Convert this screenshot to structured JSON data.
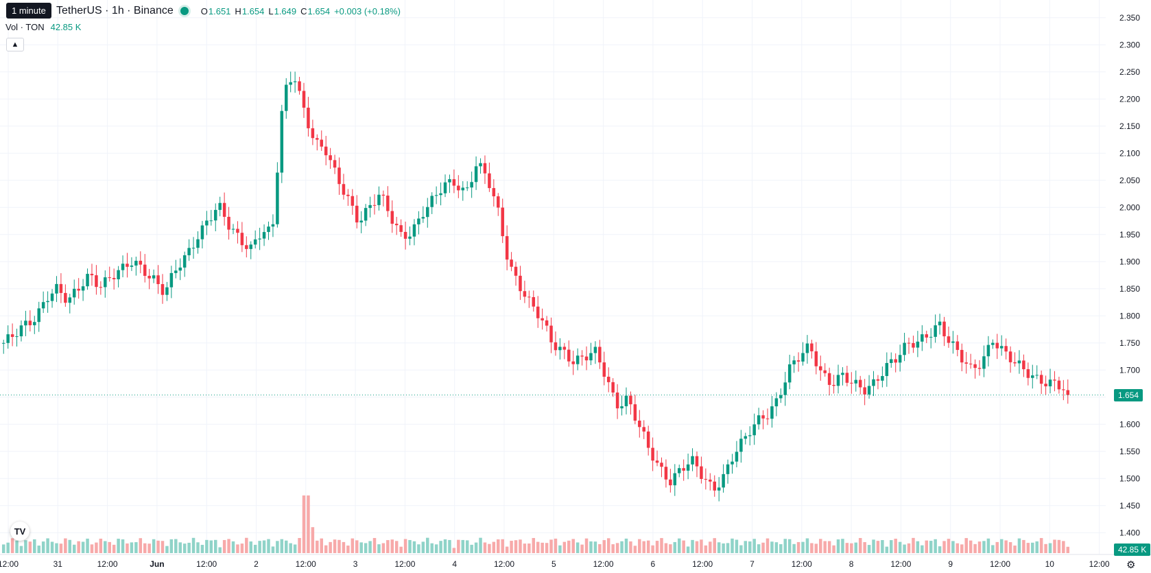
{
  "tooltip": "1 minute",
  "symbol": "TetherUS · 1h · Binance",
  "ohlc": {
    "o_label": "O",
    "o": "1.651",
    "h_label": "H",
    "h": "1.654",
    "l_label": "L",
    "l": "1.649",
    "c_label": "C",
    "c": "1.654",
    "change": "+0.003 (+0.18%)"
  },
  "volume": {
    "label": "Vol · TON",
    "value": "42.85 K",
    "tag": "42.85 K"
  },
  "price_tag": "1.654",
  "colors": {
    "up": "#089981",
    "down": "#f23645",
    "up_vol": "#8fd3c8",
    "down_vol": "#f7a9a9"
  },
  "icons": {
    "logo": "tradingview-logo-icon",
    "settings": "gear-icon",
    "collapse": "chevron-up-icon"
  },
  "chart_data": {
    "type": "candlestick",
    "price_range": [
      1.37,
      2.37
    ],
    "price_ticks": [
      "2.350",
      "2.300",
      "2.250",
      "2.200",
      "2.150",
      "2.100",
      "2.050",
      "2.000",
      "1.950",
      "1.900",
      "1.850",
      "1.800",
      "1.750",
      "1.700",
      "1.650",
      "1.600",
      "1.550",
      "1.500",
      "1.450",
      "1.400"
    ],
    "time_ticks": [
      "12:00",
      "31",
      "12:00",
      "Jun",
      "12:00",
      "2",
      "12:00",
      "3",
      "12:00",
      "4",
      "12:00",
      "5",
      "12:00",
      "6",
      "12:00",
      "7",
      "12:00",
      "8",
      "12:00",
      "9",
      "12:00",
      "10",
      "12:00"
    ],
    "last_price": 1.654,
    "close_path": [
      1.75,
      1.76,
      1.78,
      1.8,
      1.84,
      1.85,
      1.82,
      1.85,
      1.88,
      1.86,
      1.87,
      1.88,
      1.9,
      1.89,
      1.87,
      1.84,
      1.88,
      1.91,
      1.95,
      1.98,
      2.0,
      1.96,
      1.94,
      1.93,
      1.96,
      1.95,
      2.2,
      2.25,
      2.18,
      2.12,
      2.1,
      2.05,
      2.02,
      1.98,
      2.0,
      2.02,
      1.98,
      1.95,
      1.96,
      1.99,
      2.01,
      2.04,
      2.05,
      2.03,
      2.08,
      2.05,
      1.99,
      1.9,
      1.86,
      1.82,
      1.79,
      1.75,
      1.74,
      1.72,
      1.72,
      1.73,
      1.69,
      1.64,
      1.65,
      1.6,
      1.55,
      1.52,
      1.5,
      1.52,
      1.53,
      1.5,
      1.48,
      1.51,
      1.55,
      1.57,
      1.6,
      1.62,
      1.65,
      1.7,
      1.72,
      1.74,
      1.7,
      1.68,
      1.69,
      1.67,
      1.66,
      1.68,
      1.71,
      1.72,
      1.74,
      1.75,
      1.77,
      1.79,
      1.75,
      1.72,
      1.7,
      1.72,
      1.76,
      1.73,
      1.71,
      1.7,
      1.69,
      1.68,
      1.67,
      1.654
    ],
    "volume_spike_index": 39,
    "volume_range": [
      0,
      1
    ]
  }
}
